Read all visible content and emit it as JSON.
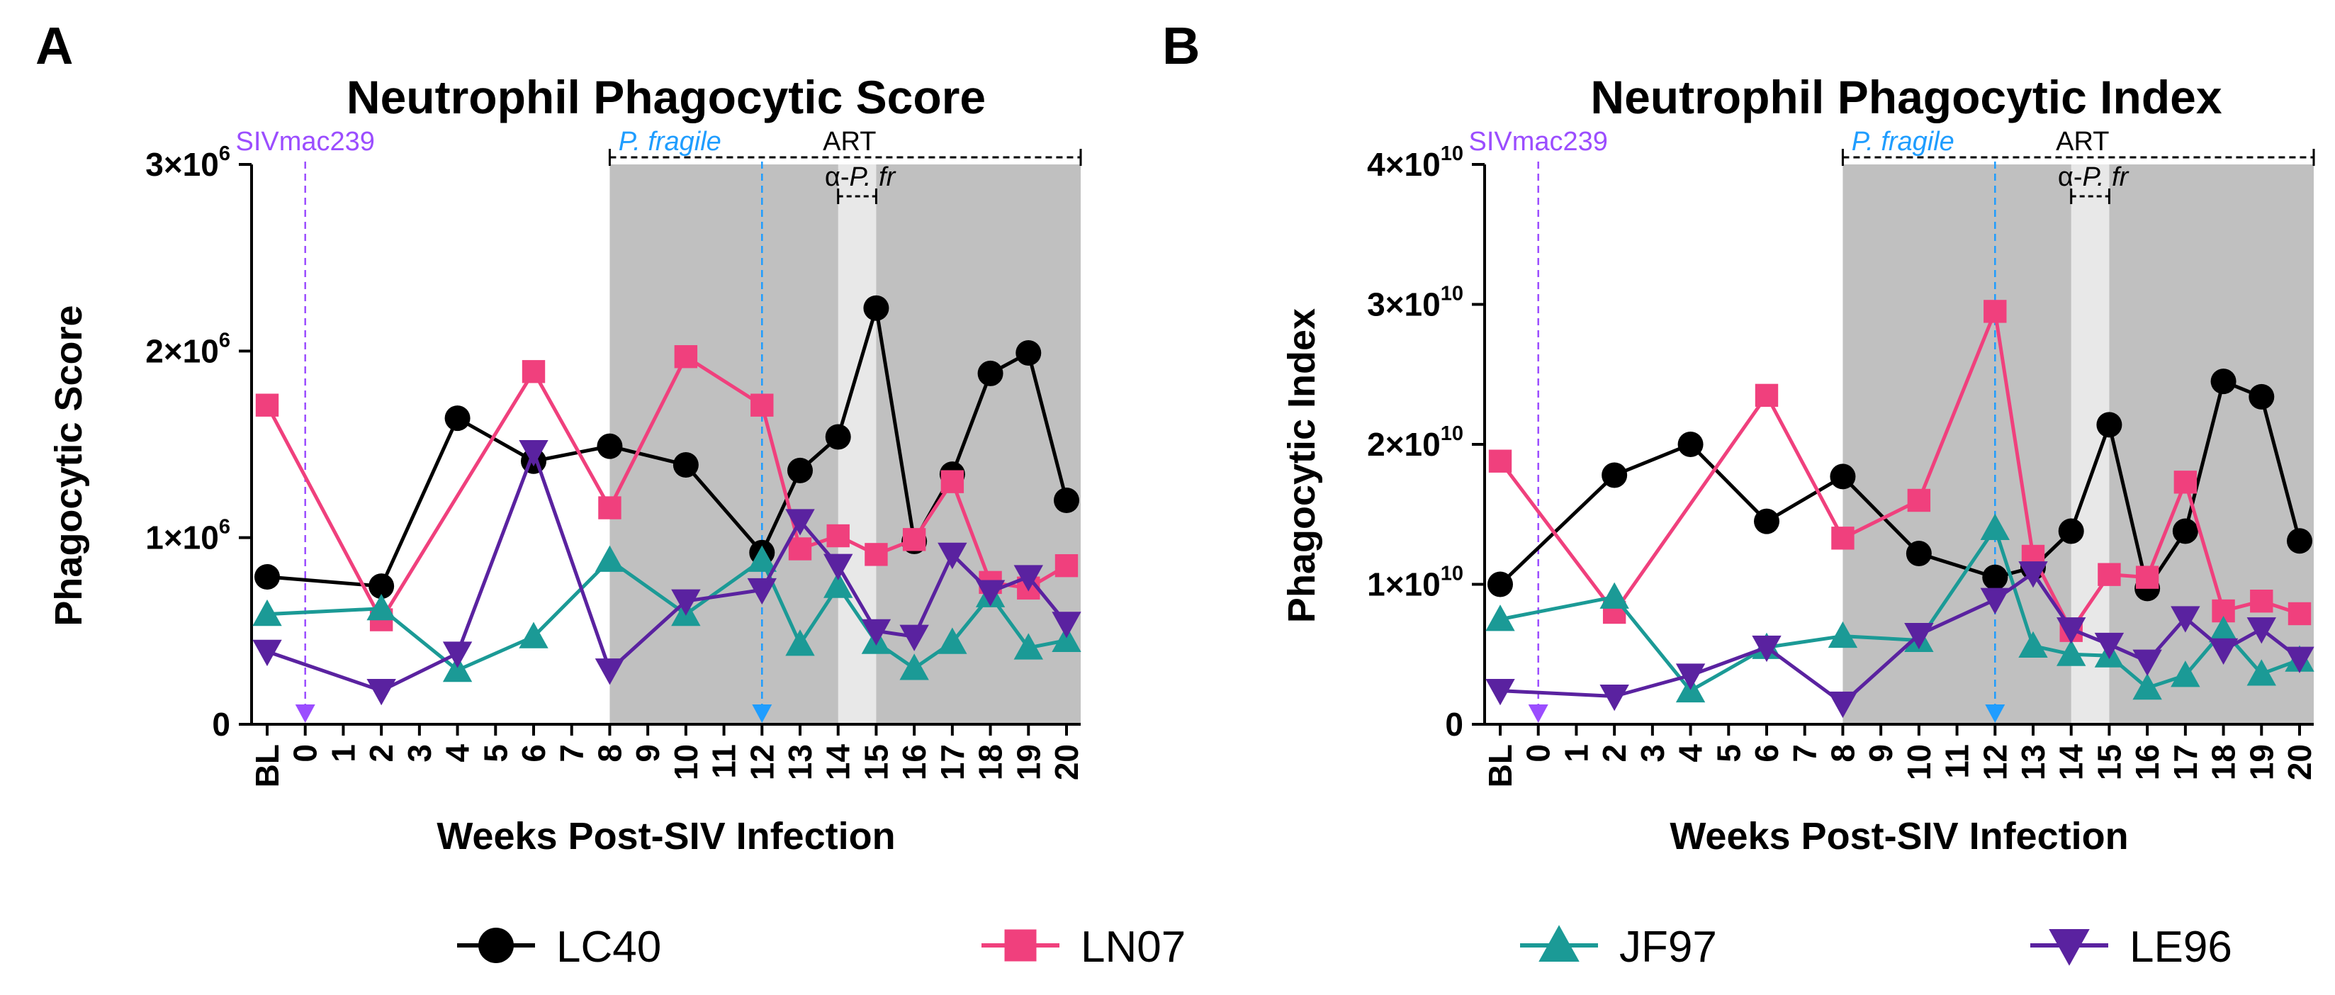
{
  "legend": {
    "entries": [
      {
        "name": "LC40",
        "color": "#000000",
        "marker": "circle"
      },
      {
        "name": "LN07",
        "color": "#f0407d",
        "marker": "square"
      },
      {
        "name": "JF97",
        "color": "#1b9a96",
        "marker": "triangle-up"
      },
      {
        "name": "LE96",
        "color": "#5a22a0",
        "marker": "triangle-down"
      }
    ]
  },
  "chart_data": [
    {
      "panel_label": "A",
      "type": "line",
      "title": "Neutrophil Phagocytic Score",
      "xlabel": "Weeks Post-SIV Infection",
      "ylabel": "Phagocytic Score",
      "categories": [
        "BL",
        "0",
        "1",
        "2",
        "3",
        "4",
        "5",
        "6",
        "7",
        "8",
        "9",
        "10",
        "11",
        "12",
        "13",
        "14",
        "15",
        "16",
        "17",
        "18",
        "19",
        "20"
      ],
      "y_ticks": [
        {
          "value": 0,
          "mantissa": "0",
          "exponent": ""
        },
        {
          "value": 1000000,
          "mantissa": "1×10",
          "exponent": "6"
        },
        {
          "value": 2000000,
          "mantissa": "2×10",
          "exponent": "6"
        },
        {
          "value": 3000000,
          "mantissa": "3×10",
          "exponent": "6"
        }
      ],
      "ylim": [
        0,
        3000000
      ],
      "series": [
        {
          "name": "LC40",
          "color": "#000000",
          "marker": "circle",
          "x": [
            -1,
            2,
            4,
            6,
            8,
            10,
            12,
            13,
            14,
            15,
            16,
            17,
            18,
            19,
            20
          ],
          "y": [
            790000,
            740000,
            1640000,
            1410000,
            1490000,
            1390000,
            920000,
            1360000,
            1540000,
            2230000,
            980000,
            1340000,
            1880000,
            1990000,
            1200000
          ]
        },
        {
          "name": "LN07",
          "color": "#f0407d",
          "marker": "square",
          "x": [
            -1,
            2,
            6,
            8,
            10,
            12,
            13,
            14,
            15,
            16,
            17,
            18,
            19,
            20
          ],
          "y": [
            1710000,
            560000,
            1890000,
            1160000,
            1970000,
            1710000,
            940000,
            1010000,
            910000,
            990000,
            1300000,
            760000,
            730000,
            850000
          ]
        },
        {
          "name": "JF97",
          "color": "#1b9a96",
          "marker": "triangle-up",
          "x": [
            -1,
            2,
            4,
            6,
            8,
            10,
            12,
            13,
            14,
            15,
            16,
            17,
            18,
            19,
            20
          ],
          "y": [
            590000,
            620000,
            290000,
            470000,
            880000,
            590000,
            880000,
            430000,
            740000,
            440000,
            300000,
            440000,
            690000,
            410000,
            450000
          ]
        },
        {
          "name": "LE96",
          "color": "#5a22a0",
          "marker": "triangle-down",
          "x": [
            -1,
            2,
            4,
            6,
            8,
            10,
            12,
            13,
            14,
            15,
            16,
            17,
            18,
            19,
            20
          ],
          "y": [
            390000,
            180000,
            380000,
            1460000,
            290000,
            660000,
            720000,
            1090000,
            850000,
            500000,
            470000,
            910000,
            710000,
            790000,
            540000
          ]
        }
      ],
      "shaded_regions": [
        {
          "from": 8,
          "to": 20.6,
          "color": "#c0c0c0"
        },
        {
          "from": 14,
          "to": 15,
          "color": "#e8e8e8"
        }
      ],
      "annotations": {
        "siv": {
          "label": "SIVmac239",
          "x": 0,
          "color": "#9b4dff"
        },
        "pf": {
          "label": "P. fragile",
          "x": 12,
          "color": "#1f9dff"
        },
        "art": {
          "label": "ART",
          "from": 8,
          "to": 20.6
        },
        "alpha": {
          "prefix": "α-",
          "italic": "P. fr",
          "from": 14,
          "to": 15
        }
      }
    },
    {
      "panel_label": "B",
      "type": "line",
      "title": "Neutrophil Phagocytic Index",
      "xlabel": "Weeks Post-SIV Infection",
      "ylabel": "Phagocytic Index",
      "categories": [
        "BL",
        "0",
        "1",
        "2",
        "3",
        "4",
        "5",
        "6",
        "7",
        "8",
        "9",
        "10",
        "11",
        "12",
        "13",
        "14",
        "15",
        "16",
        "17",
        "18",
        "19",
        "20"
      ],
      "y_ticks": [
        {
          "value": 0,
          "mantissa": "0",
          "exponent": ""
        },
        {
          "value": 10000000000,
          "mantissa": "1×10",
          "exponent": "10"
        },
        {
          "value": 20000000000,
          "mantissa": "2×10",
          "exponent": "10"
        },
        {
          "value": 30000000000,
          "mantissa": "3×10",
          "exponent": "10"
        },
        {
          "value": 40000000000,
          "mantissa": "4×10",
          "exponent": "10"
        }
      ],
      "ylim": [
        0,
        40000000000
      ],
      "series": [
        {
          "name": "LC40",
          "color": "#000000",
          "marker": "circle",
          "x": [
            -1,
            2,
            4,
            6,
            8,
            10,
            12,
            13,
            14,
            15,
            16,
            17,
            18,
            19,
            20
          ],
          "y": [
            10000000000,
            17800000000,
            20000000000,
            14500000000,
            17700000000,
            12200000000,
            10500000000,
            11200000000,
            13800000000,
            21400000000,
            9700000000,
            13800000000,
            24500000000,
            23400000000,
            13100000000
          ]
        },
        {
          "name": "LN07",
          "color": "#f0407d",
          "marker": "square",
          "x": [
            -1,
            2,
            6,
            8,
            10,
            12,
            13,
            14,
            15,
            16,
            17,
            18,
            19,
            20
          ],
          "y": [
            18800000000,
            8000000000,
            23500000000,
            13300000000,
            16000000000,
            29500000000,
            12000000000,
            6700000000,
            10700000000,
            10500000000,
            17300000000,
            8100000000,
            8800000000,
            7900000000
          ]
        },
        {
          "name": "JF97",
          "color": "#1b9a96",
          "marker": "triangle-up",
          "x": [
            -1,
            2,
            4,
            6,
            8,
            10,
            12,
            13,
            14,
            15,
            16,
            17,
            18,
            19,
            20
          ],
          "y": [
            7500000000,
            9100000000,
            2400000000,
            5500000000,
            6300000000,
            6000000000,
            14000000000,
            5600000000,
            5000000000,
            4900000000,
            2600000000,
            3500000000,
            6700000000,
            3600000000,
            4600000000
          ]
        },
        {
          "name": "LE96",
          "color": "#5a22a0",
          "marker": "triangle-down",
          "x": [
            -1,
            2,
            4,
            6,
            8,
            10,
            12,
            13,
            14,
            15,
            16,
            17,
            18,
            19,
            20
          ],
          "y": [
            2400000000,
            2000000000,
            3500000000,
            5500000000,
            1500000000,
            6400000000,
            8900000000,
            10800000000,
            6800000000,
            5700000000,
            4500000000,
            7600000000,
            5300000000,
            6800000000,
            4700000000
          ]
        }
      ],
      "shaded_regions": [
        {
          "from": 8,
          "to": 20.6,
          "color": "#c0c0c0"
        },
        {
          "from": 14,
          "to": 15,
          "color": "#e8e8e8"
        }
      ],
      "annotations": {
        "siv": {
          "label": "SIVmac239",
          "x": 0,
          "color": "#9b4dff"
        },
        "pf": {
          "label": "P. fragile",
          "x": 12,
          "color": "#1f9dff"
        },
        "art": {
          "label": "ART",
          "from": 8,
          "to": 20.6
        },
        "alpha": {
          "prefix": "α-",
          "italic": "P. fr",
          "from": 14,
          "to": 15
        }
      }
    }
  ]
}
